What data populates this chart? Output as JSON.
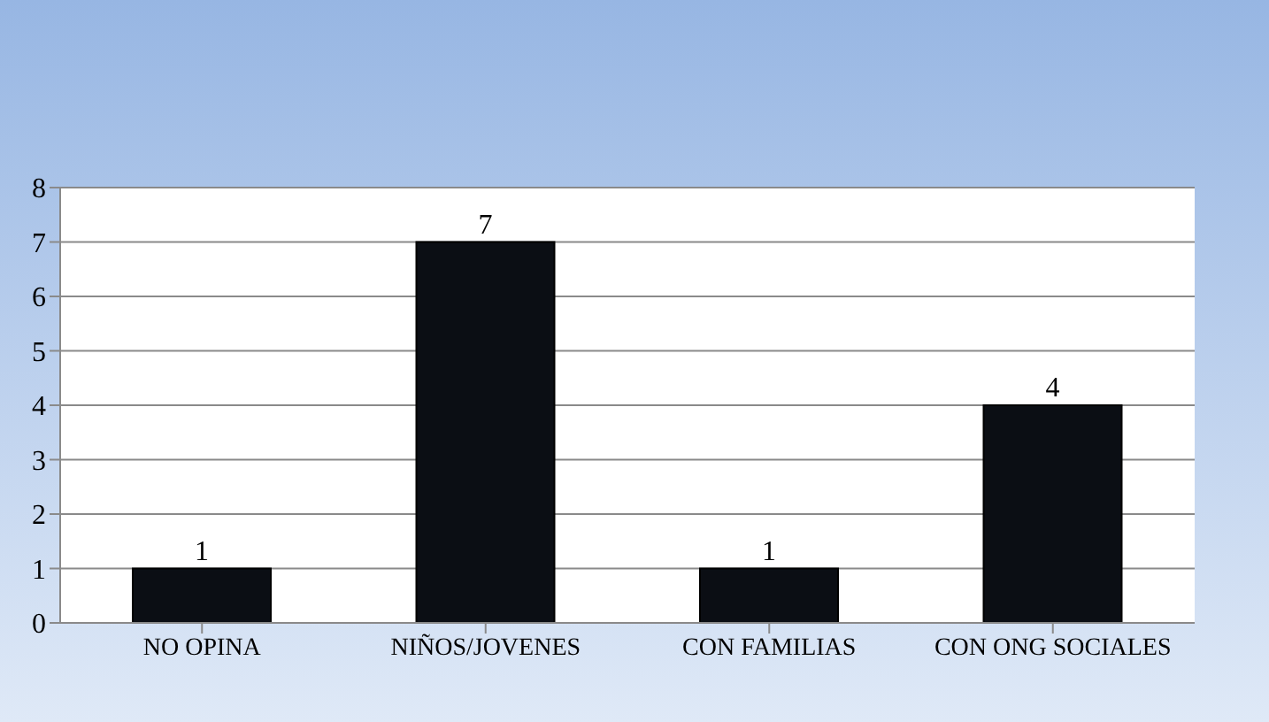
{
  "chart_data": {
    "type": "bar",
    "categories": [
      "NO OPINA",
      "NIÑOS/JOVENES",
      "CON FAMILIAS",
      "CON ONG SOCIALES"
    ],
    "values": [
      1,
      7,
      1,
      4
    ],
    "color": "#0b0e14",
    "ylim": [
      0,
      8
    ],
    "yticks": [
      0,
      1,
      2,
      3,
      4,
      5,
      6,
      7,
      8
    ],
    "grid": "y",
    "data_labels": true
  }
}
